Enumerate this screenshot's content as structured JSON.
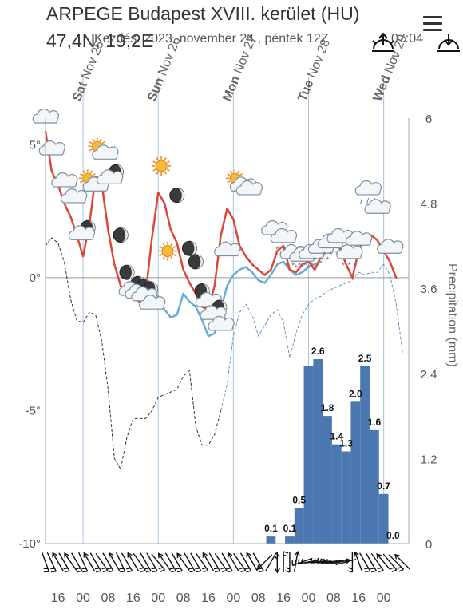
{
  "header": {
    "title": "ARPEGE Budapest XVIII. kerület (HU)",
    "coords": "47,4N, 19,2E",
    "start_text": "Kezdés: 2023. november 24., péntek 12Z",
    "sunset_time": "07:04"
  },
  "icons": {
    "sunrise": "sunrise-icon",
    "sunset": "sunset-icon",
    "menu": "menu-icon"
  },
  "colors": {
    "temperature": "#d9483b",
    "dewpoint": "#6aaed6",
    "precip_bar": "#4b78b0",
    "min_dashed": "#333333",
    "secondary_dashed": "#6a8fc0",
    "gridline": "#a9c4e0"
  },
  "chart_data": {
    "type": "line+bar",
    "days": [
      {
        "label": "Sat Nov 25",
        "hour": 24
      },
      {
        "label": "Sun Nov 26",
        "hour": 48
      },
      {
        "label": "Mon Nov 27",
        "hour": 72
      },
      {
        "label": "Tue Nov 28",
        "hour": 96
      },
      {
        "label": "Wed Nov 29",
        "hour": 120
      }
    ],
    "x_ticks": [
      "16",
      "00",
      "08",
      "16",
      "00",
      "08",
      "16",
      "00",
      "08",
      "16",
      "00",
      "08",
      "16",
      "00"
    ],
    "x_tick_hours": [
      16,
      24,
      32,
      40,
      48,
      56,
      64,
      72,
      80,
      88,
      96,
      104,
      112,
      120
    ],
    "xlim": [
      12,
      128
    ],
    "y_left": {
      "ticks": [
        "5°",
        "0°",
        "-5°",
        "-10°"
      ],
      "values": [
        5,
        0,
        -5,
        -10
      ],
      "range": [
        -10,
        6
      ]
    },
    "y_right": {
      "label": "Precipitation (mm)",
      "ticks": [
        "6",
        "4.8",
        "3.6",
        "2.4",
        "1.2",
        "0"
      ],
      "values": [
        6,
        4.8,
        3.6,
        2.4,
        1.2,
        0
      ],
      "range": [
        0,
        6
      ]
    },
    "temperature": {
      "hours": [
        12,
        14,
        16,
        18,
        20,
        22,
        24,
        26,
        28,
        30,
        32,
        34,
        36,
        38,
        40,
        42,
        44,
        46,
        48,
        50,
        52,
        54,
        56,
        58,
        60,
        62,
        64,
        66,
        68,
        70,
        72,
        74,
        76,
        78,
        80,
        82,
        84,
        86,
        88,
        90,
        92,
        94,
        96,
        98,
        100,
        102,
        104,
        106,
        108,
        110,
        112,
        114,
        116,
        118,
        120,
        122,
        124
      ],
      "values": [
        5.5,
        4,
        3.5,
        2.8,
        2.3,
        1.6,
        0.8,
        2,
        3.8,
        3.5,
        1.8,
        0.5,
        -0.3,
        -0.5,
        -0.8,
        -0.9,
        -0.6,
        1.5,
        3.2,
        2.8,
        1.8,
        1.3,
        0.3,
        -0.2,
        -0.6,
        -1.1,
        -1.2,
        -0.3,
        1.6,
        2.6,
        2.2,
        1.2,
        0.8,
        0.5,
        0.3,
        0.1,
        0.3,
        1,
        1.2,
        0.3,
        0.2,
        0.5,
        0.6,
        0.3,
        0.8,
        1.4,
        1.3,
        1.1,
        0.5,
        0,
        1,
        1.6,
        1.6,
        1.4,
        1,
        0.6,
        0
      ]
    },
    "dewpoint": {
      "hours": [
        46,
        48,
        50,
        52,
        54,
        56,
        58,
        60,
        62,
        64,
        66,
        68,
        70,
        72,
        74,
        76,
        78,
        80,
        82,
        84,
        86,
        88,
        90,
        92,
        94,
        96,
        98,
        100
      ],
      "values": [
        -0.5,
        -0.7,
        -1.2,
        -1.5,
        -1.4,
        -0.6,
        -0.9,
        -1.1,
        -1.6,
        -2.2,
        -2.1,
        -1.2,
        -0.3,
        0.1,
        0.3,
        0.4,
        0.2,
        -0.1,
        -0.2,
        0.1,
        0.5,
        0.6,
        0.3,
        0.1,
        0.2,
        0.4,
        0.5,
        0.6
      ]
    },
    "dashed_min": {
      "hours": [
        12,
        14,
        16,
        18,
        20,
        22,
        24,
        26,
        28,
        30,
        32,
        34,
        36,
        38,
        40,
        42,
        44,
        46,
        48,
        50,
        52,
        54,
        56,
        58,
        60,
        62,
        64,
        66,
        68
      ],
      "values": [
        1.2,
        1.5,
        1.3,
        0.6,
        -0.8,
        -1.6,
        -1.7,
        -1.3,
        -1.4,
        -2.4,
        -4.2,
        -6.8,
        -7.2,
        -6.0,
        -5.3,
        -5.3,
        -5.3,
        -5.0,
        -4.5,
        -4.4,
        -4.3,
        -4.2,
        -3.7,
        -3.5,
        -5.6,
        -6.3,
        -6.3,
        -5.9,
        -5.0
      ]
    },
    "dashed_secondary": {
      "hours": [
        68,
        70,
        72,
        74,
        76,
        78,
        80,
        82,
        84,
        86,
        88,
        90,
        92,
        94,
        96,
        98,
        100,
        102,
        104,
        106,
        108,
        110,
        112,
        114,
        116,
        118,
        120,
        122,
        124,
        126
      ],
      "values": [
        -5.0,
        -4.0,
        -2.2,
        -1.3,
        -1.0,
        -1.4,
        -2.2,
        -1.8,
        -1.4,
        -1.2,
        -1.7,
        -3.0,
        -2.1,
        -1.4,
        -1.0,
        -0.8,
        -0.7,
        -0.5,
        -0.4,
        -0.3,
        -0.2,
        -0.1,
        0.2,
        0.1,
        0.2,
        0.2,
        0.5,
        0.1,
        -1.0,
        -2.8
      ]
    },
    "precipitation": {
      "hours": [
        84,
        87,
        90,
        93,
        96,
        99,
        102,
        105,
        108,
        111,
        114,
        117,
        120,
        123,
        126
      ],
      "values": [
        0.1,
        0,
        0.1,
        0.5,
        2.5,
        2.6,
        1.8,
        1.4,
        1.3,
        2.0,
        2.5,
        1.6,
        0.7,
        0,
        0
      ],
      "labels": [
        {
          "hour": 84,
          "value": 0.1,
          "text": "0.1"
        },
        {
          "hour": 90,
          "value": 0.1,
          "text": "0.1"
        },
        {
          "hour": 93,
          "value": 0.5,
          "text": "0.5"
        },
        {
          "hour": 99,
          "value": 2.6,
          "text": "2.6"
        },
        {
          "hour": 102,
          "value": 1.8,
          "text": "1.8"
        },
        {
          "hour": 105,
          "value": 1.4,
          "text": "1.4"
        },
        {
          "hour": 108,
          "value": 1.3,
          "text": "1.3"
        },
        {
          "hour": 111,
          "value": 2.0,
          "text": "2.0"
        },
        {
          "hour": 114,
          "value": 2.5,
          "text": "2.5"
        },
        {
          "hour": 117,
          "value": 1.6,
          "text": "1.6"
        },
        {
          "hour": 120,
          "value": 0.7,
          "text": "0.7"
        },
        {
          "hour": 123,
          "value": 0.0,
          "text": "0.0"
        }
      ]
    },
    "weather_symbols": [
      {
        "hour": 12,
        "temp": 6.0,
        "type": "cloud"
      },
      {
        "hour": 14,
        "temp": 4.8,
        "type": "cloud"
      },
      {
        "hour": 18,
        "temp": 3.6,
        "type": "cloud"
      },
      {
        "hour": 21,
        "temp": 3.0,
        "type": "cloud"
      },
      {
        "hour": 24,
        "temp": 1.7,
        "type": "moon-cloud"
      },
      {
        "hour": 27,
        "temp": 3.5,
        "type": "sun-cloud"
      },
      {
        "hour": 30,
        "temp": 4.7,
        "type": "sun-cloud"
      },
      {
        "hour": 33,
        "temp": 3.8,
        "type": "moon-cloud"
      },
      {
        "hour": 36,
        "temp": 1.6,
        "type": "moon"
      },
      {
        "hour": 38,
        "temp": 0.2,
        "type": "moon"
      },
      {
        "hour": 40,
        "temp": -0.4,
        "type": "moon-cloud"
      },
      {
        "hour": 42,
        "temp": -0.5,
        "type": "moon-cloud"
      },
      {
        "hour": 44,
        "temp": -0.6,
        "type": "moon-cloud"
      },
      {
        "hour": 46,
        "temp": -1.0,
        "type": "cloud"
      },
      {
        "hour": 49,
        "temp": 4.2,
        "type": "sun"
      },
      {
        "hour": 51,
        "temp": 1.0,
        "type": "sun"
      },
      {
        "hour": 54,
        "temp": 3.1,
        "type": "moon"
      },
      {
        "hour": 58,
        "temp": 1.1,
        "type": "moon"
      },
      {
        "hour": 60,
        "temp": 0.6,
        "type": "moon"
      },
      {
        "hour": 62,
        "temp": -0.5,
        "type": "moon"
      },
      {
        "hour": 64,
        "temp": -0.9,
        "type": "cloud"
      },
      {
        "hour": 66,
        "temp": -1.3,
        "type": "moon-cloud"
      },
      {
        "hour": 68,
        "temp": -1.8,
        "type": "cloud"
      },
      {
        "hour": 70,
        "temp": 1.0,
        "type": "cloud"
      },
      {
        "hour": 74,
        "temp": 3.5,
        "type": "sun-cloud"
      },
      {
        "hour": 77,
        "temp": 3.3,
        "type": "cloud"
      },
      {
        "hour": 85,
        "temp": 1.8,
        "type": "cloud"
      },
      {
        "hour": 88,
        "temp": 1.5,
        "type": "snow-cloud"
      },
      {
        "hour": 91,
        "temp": 0.9,
        "type": "snow-cloud"
      },
      {
        "hour": 94,
        "temp": 0.8,
        "type": "snow-cloud"
      },
      {
        "hour": 97,
        "temp": 0.9,
        "type": "snow-cloud"
      },
      {
        "hour": 100,
        "temp": 1.1,
        "type": "snow-cloud"
      },
      {
        "hour": 103,
        "temp": 1.3,
        "type": "snow-cloud"
      },
      {
        "hour": 106,
        "temp": 1.5,
        "type": "cloud"
      },
      {
        "hour": 109,
        "temp": 0.9,
        "type": "snow-cloud"
      },
      {
        "hour": 112,
        "temp": 1.4,
        "type": "cloud"
      },
      {
        "hour": 115,
        "temp": 3.3,
        "type": "rain-cloud"
      },
      {
        "hour": 118,
        "temp": 2.6,
        "type": "cloud"
      },
      {
        "hour": 122,
        "temp": 1.1,
        "type": "cloud"
      }
    ],
    "wind_barbs": [
      {
        "hour": 12,
        "dir": 160,
        "kind": "flag"
      },
      {
        "hour": 14,
        "dir": 155,
        "kind": "flag"
      },
      {
        "hour": 16,
        "dir": 150,
        "kind": "arrow"
      },
      {
        "hour": 18,
        "dir": 150,
        "kind": "flag"
      },
      {
        "hour": 20,
        "dir": 145,
        "kind": "arrow"
      },
      {
        "hour": 22,
        "dir": 150,
        "kind": "flag"
      },
      {
        "hour": 24,
        "dir": 155,
        "kind": "flag"
      },
      {
        "hour": 26,
        "dir": 150,
        "kind": "arrow"
      },
      {
        "hour": 28,
        "dir": 150,
        "kind": "flag"
      },
      {
        "hour": 30,
        "dir": 145,
        "kind": "flag"
      },
      {
        "hour": 32,
        "dir": 150,
        "kind": "flag"
      },
      {
        "hour": 34,
        "dir": 150,
        "kind": "arrow"
      },
      {
        "hour": 36,
        "dir": 155,
        "kind": "flag"
      },
      {
        "hour": 38,
        "dir": 150,
        "kind": "flag"
      },
      {
        "hour": 40,
        "dir": 150,
        "kind": "arrow"
      },
      {
        "hour": 42,
        "dir": 145,
        "kind": "flag"
      },
      {
        "hour": 44,
        "dir": 150,
        "kind": "flag"
      },
      {
        "hour": 46,
        "dir": 150,
        "kind": "flag"
      },
      {
        "hour": 48,
        "dir": 140,
        "kind": "flag"
      },
      {
        "hour": 50,
        "dir": 145,
        "kind": "arrow"
      },
      {
        "hour": 52,
        "dir": 150,
        "kind": "flag"
      },
      {
        "hour": 54,
        "dir": 150,
        "kind": "flag"
      },
      {
        "hour": 56,
        "dir": 145,
        "kind": "arrow"
      },
      {
        "hour": 58,
        "dir": 150,
        "kind": "flag"
      },
      {
        "hour": 60,
        "dir": 150,
        "kind": "flag"
      },
      {
        "hour": 62,
        "dir": 145,
        "kind": "flag"
      },
      {
        "hour": 64,
        "dir": 150,
        "kind": "arrow"
      },
      {
        "hour": 66,
        "dir": 150,
        "kind": "flag"
      },
      {
        "hour": 68,
        "dir": 145,
        "kind": "flag"
      },
      {
        "hour": 70,
        "dir": 150,
        "kind": "flag"
      },
      {
        "hour": 72,
        "dir": 150,
        "kind": "arrow"
      },
      {
        "hour": 74,
        "dir": 145,
        "kind": "flag"
      },
      {
        "hour": 76,
        "dir": 150,
        "kind": "flag"
      },
      {
        "hour": 78,
        "dir": 150,
        "kind": "arrow"
      },
      {
        "hour": 80,
        "dir": 150,
        "kind": "flag"
      },
      {
        "hour": 82,
        "dir": 45,
        "kind": "arrow"
      },
      {
        "hour": 84,
        "dir": 30,
        "kind": "flag"
      },
      {
        "hour": 86,
        "dir": 0,
        "kind": "arrow"
      },
      {
        "hour": 88,
        "dir": 0,
        "kind": "flag"
      },
      {
        "hour": 90,
        "dir": 180,
        "kind": "flag"
      },
      {
        "hour": 92,
        "dir": 190,
        "kind": "arrow"
      },
      {
        "hour": 94,
        "dir": 250,
        "kind": "flag"
      },
      {
        "hour": 96,
        "dir": 260,
        "kind": "flag"
      },
      {
        "hour": 98,
        "dir": 265,
        "kind": "arrow"
      },
      {
        "hour": 100,
        "dir": 265,
        "kind": "flag"
      },
      {
        "hour": 102,
        "dir": 265,
        "kind": "flag"
      },
      {
        "hour": 104,
        "dir": 260,
        "kind": "flag"
      },
      {
        "hour": 106,
        "dir": 260,
        "kind": "arrow"
      },
      {
        "hour": 108,
        "dir": 255,
        "kind": "flag"
      },
      {
        "hour": 110,
        "dir": 180,
        "kind": "flag"
      },
      {
        "hour": 112,
        "dir": 160,
        "kind": "arrow"
      },
      {
        "hour": 114,
        "dir": 150,
        "kind": "flag"
      },
      {
        "hour": 116,
        "dir": 150,
        "kind": "flag"
      },
      {
        "hour": 118,
        "dir": 145,
        "kind": "flag"
      },
      {
        "hour": 120,
        "dir": 140,
        "kind": "arrow"
      },
      {
        "hour": 122,
        "dir": 140,
        "kind": "flag"
      },
      {
        "hour": 124,
        "dir": 135,
        "kind": "flag"
      },
      {
        "hour": 126,
        "dir": 135,
        "kind": "arrow"
      }
    ]
  }
}
